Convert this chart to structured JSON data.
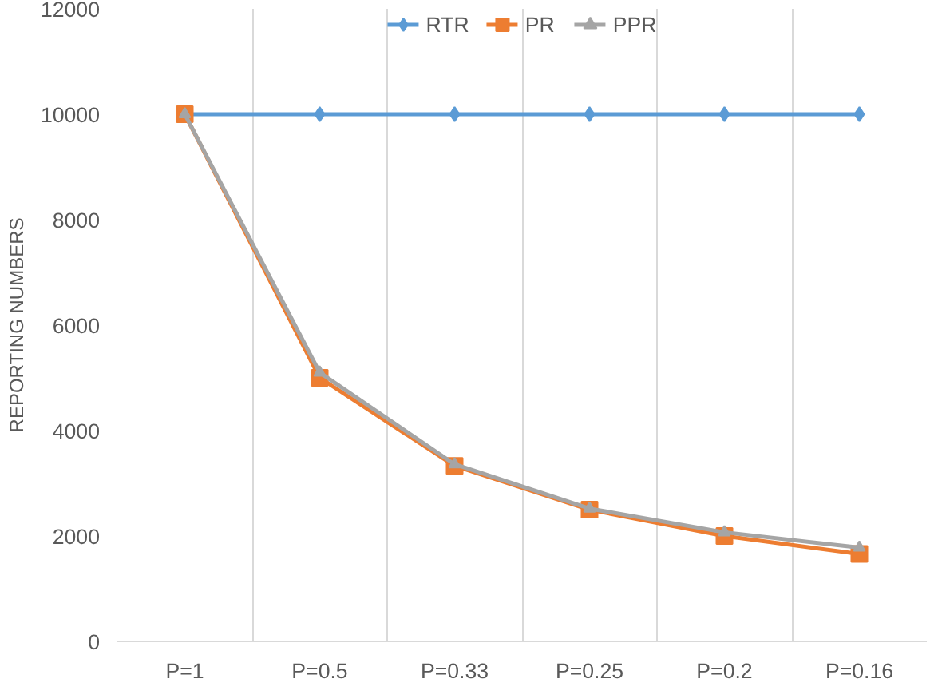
{
  "chart_data": {
    "type": "line",
    "ylabel": "REPORTING NUMBERS",
    "categories": [
      "P=1",
      "P=0.5",
      "P=0.33",
      "P=0.25",
      "P=0.2",
      "P=0.16"
    ],
    "series": [
      {
        "name": "RTR",
        "color": "#5b9bd5",
        "marker": "diamond",
        "values": [
          10000,
          10000,
          10000,
          10000,
          10000,
          10000
        ]
      },
      {
        "name": "PR",
        "color": "#ed7d31",
        "marker": "square",
        "values": [
          10000,
          5000,
          3330,
          2500,
          2000,
          1660
        ]
      },
      {
        "name": "PPR",
        "color": "#a5a5a5",
        "marker": "triangle",
        "values": [
          10000,
          5100,
          3360,
          2520,
          2070,
          1780
        ]
      }
    ],
    "ylim": [
      0,
      12000
    ],
    "yticks": [
      0,
      2000,
      4000,
      6000,
      8000,
      10000,
      12000
    ],
    "grid": "x",
    "legend": "top",
    "line_style": "solid"
  }
}
